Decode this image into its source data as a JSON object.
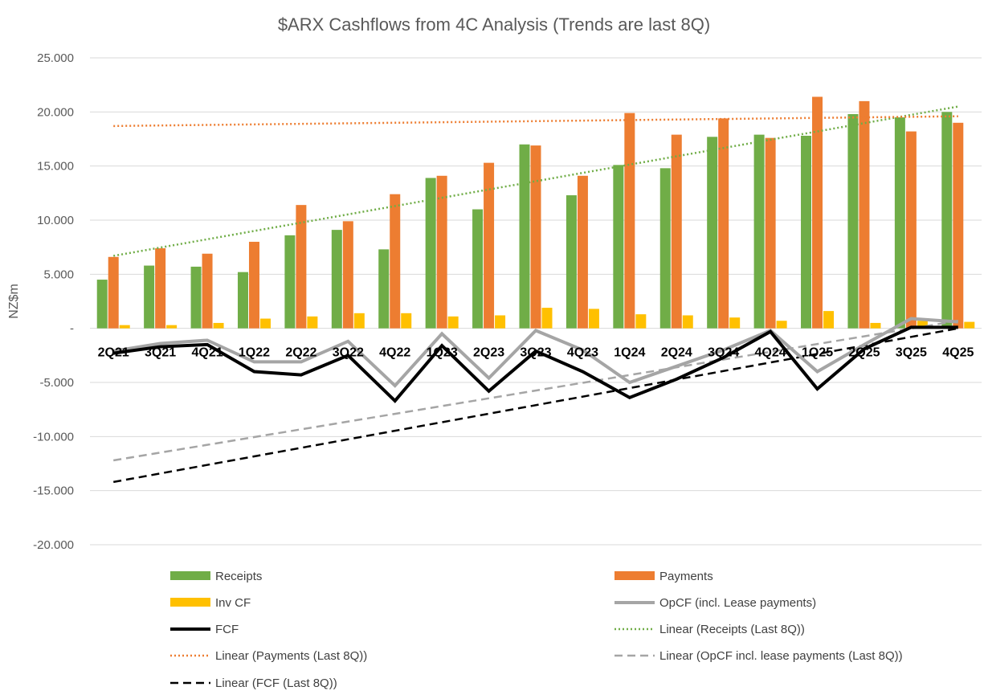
{
  "chart_data": {
    "type": "bar",
    "title": "$ARX Cashflows from 4C Analysis (Trends are last 8Q)",
    "xlabel": "",
    "ylabel": "NZ$m",
    "ylim": [
      -20,
      25
    ],
    "y_ticks": [
      25,
      20,
      15,
      10,
      5,
      0,
      -5,
      -10,
      -15,
      -20
    ],
    "y_tick_labels": [
      "25.000",
      "20.000",
      "15.000",
      "10.000",
      "5.000",
      "-",
      "-5.000",
      "-10.000",
      "-15.000",
      "-20.000"
    ],
    "grid": true,
    "legend_position": "bottom",
    "categories": [
      "2Q21",
      "3Q21",
      "4Q21",
      "1Q22",
      "2Q22",
      "3Q22",
      "4Q22",
      "1Q23",
      "2Q23",
      "3Q23",
      "4Q23",
      "1Q24",
      "2Q24",
      "3Q24",
      "4Q24",
      "1Q25",
      "2Q25",
      "3Q25",
      "4Q25"
    ],
    "series": [
      {
        "name": "Receipts",
        "kind": "bar",
        "color": "#70AD47",
        "values": [
          4.5,
          5.8,
          5.7,
          5.2,
          8.6,
          9.1,
          7.3,
          13.9,
          11.0,
          17.0,
          12.3,
          15.1,
          14.8,
          17.7,
          17.9,
          17.8,
          19.8,
          19.5,
          20.0
        ]
      },
      {
        "name": "Payments",
        "kind": "bar",
        "color": "#ED7D31",
        "values": [
          6.6,
          7.4,
          6.9,
          8.0,
          11.4,
          9.9,
          12.4,
          14.1,
          15.3,
          16.9,
          14.1,
          19.9,
          17.9,
          19.4,
          17.6,
          21.4,
          21.0,
          18.2,
          19.0
        ]
      },
      {
        "name": "Inv CF",
        "kind": "bar",
        "color": "#FFC000",
        "values": [
          0.3,
          0.3,
          0.5,
          0.9,
          1.1,
          1.4,
          1.4,
          1.1,
          1.2,
          1.9,
          1.8,
          1.3,
          1.2,
          1.0,
          0.7,
          1.6,
          0.5,
          0.7,
          0.6
        ]
      },
      {
        "name": "OpCF (incl. Lease payments)",
        "kind": "line",
        "color": "#A5A5A5",
        "style": "solid",
        "values": [
          -2.1,
          -1.4,
          -1.1,
          -3.1,
          -3.1,
          -1.2,
          -5.3,
          -0.5,
          -4.6,
          -0.2,
          -2.0,
          -5.0,
          -3.5,
          -2.0,
          -0.2,
          -4.0,
          -1.5,
          0.9,
          0.6
        ]
      },
      {
        "name": "FCF",
        "kind": "line",
        "color": "#000000",
        "style": "solid",
        "values": [
          -2.3,
          -1.7,
          -1.5,
          -4.0,
          -4.3,
          -2.5,
          -6.7,
          -1.6,
          -5.8,
          -2.1,
          -4.0,
          -6.4,
          -4.7,
          -2.7,
          -0.3,
          -5.6,
          -1.9,
          0.1,
          0.1
        ]
      }
    ],
    "trendlines": [
      {
        "name": "Linear (Receipts (Last 8Q))",
        "color": "#70AD47",
        "style": "dotted",
        "start": 6.7,
        "end": 20.5
      },
      {
        "name": "Linear (Payments (Last 8Q))",
        "color": "#ED7D31",
        "style": "dotted",
        "start": 18.7,
        "end": 19.6
      },
      {
        "name": "Linear (OpCF incl. lease payments (Last 8Q))",
        "color": "#A5A5A5",
        "style": "dashed",
        "start": -12.2,
        "end": 0.7
      },
      {
        "name": "Linear (FCF (Last 8Q))",
        "color": "#000000",
        "style": "dashed",
        "start": -14.2,
        "end": 0.0
      }
    ],
    "legend": [
      {
        "label": "Receipts",
        "marker": "bar",
        "color": "#70AD47"
      },
      {
        "label": "Payments",
        "marker": "bar",
        "color": "#ED7D31"
      },
      {
        "label": "Inv CF",
        "marker": "bar",
        "color": "#FFC000"
      },
      {
        "label": "OpCF (incl. Lease payments)",
        "marker": "line",
        "color": "#A5A5A5",
        "style": "solid"
      },
      {
        "label": "FCF",
        "marker": "line",
        "color": "#000000",
        "style": "solid"
      },
      {
        "label": "Linear (Receipts (Last 8Q))",
        "marker": "line",
        "color": "#70AD47",
        "style": "dotted"
      },
      {
        "label": "Linear (Payments (Last 8Q))",
        "marker": "line",
        "color": "#ED7D31",
        "style": "dotted"
      },
      {
        "label": "Linear (OpCF incl. lease payments (Last 8Q))",
        "marker": "line",
        "color": "#A5A5A5",
        "style": "dashed"
      },
      {
        "label": "Linear (FCF (Last 8Q))",
        "marker": "line",
        "color": "#000000",
        "style": "dashed"
      }
    ]
  }
}
